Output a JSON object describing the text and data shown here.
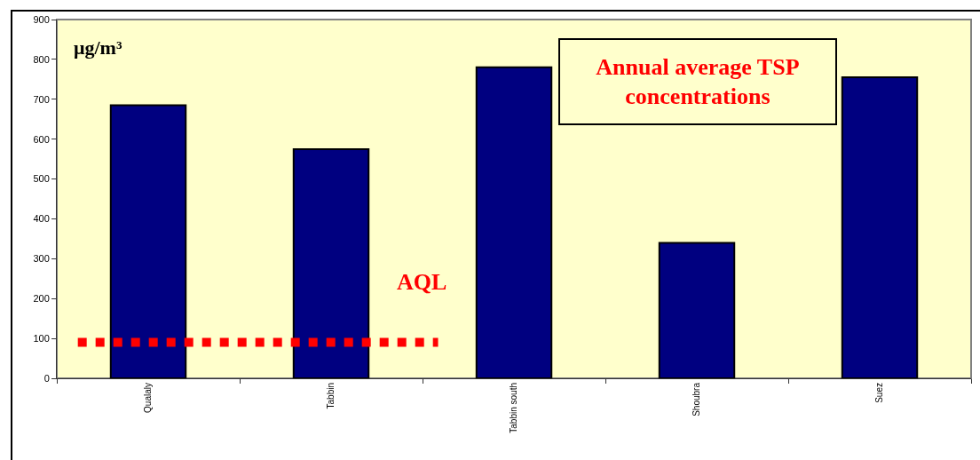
{
  "chart_data": {
    "type": "bar",
    "title": "Annual average TSP\nconcentrations",
    "ylabel": "μg/m³",
    "categories": [
      "Qualaly",
      "Tabbin",
      "Tabbin south",
      "Shoubra",
      "Suez"
    ],
    "values": [
      685,
      575,
      780,
      340,
      755
    ],
    "color": "#000080",
    "ylim": [
      0,
      900
    ],
    "yticks": [
      0,
      100,
      200,
      300,
      400,
      500,
      600,
      700,
      800,
      900
    ],
    "grid": false,
    "ref_lines": [
      {
        "axis": "y",
        "value": 90,
        "label": "AQL",
        "color": "#ff0000",
        "line_style": "dotted"
      }
    ]
  }
}
